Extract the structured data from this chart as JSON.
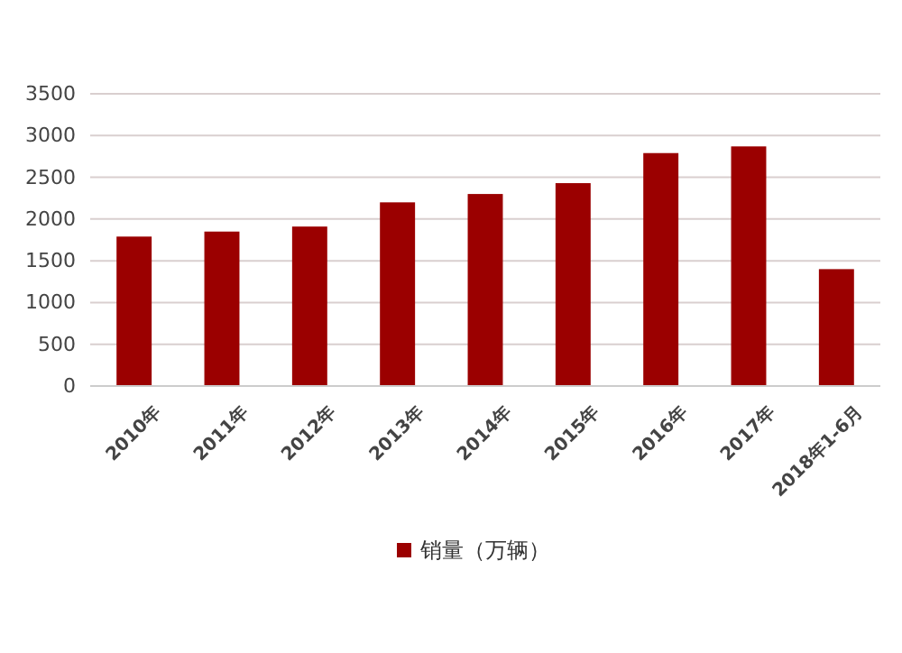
{
  "chart_data": {
    "type": "bar",
    "categories": [
      "2010年",
      "2011年",
      "2012年",
      "2013年",
      "2014年",
      "2015年",
      "2016年",
      "2017年",
      "2018年1-6月"
    ],
    "series": [
      {
        "name": "销量（万辆）",
        "color": "#9b0000",
        "values": [
          1790,
          1850,
          1910,
          2200,
          2300,
          2430,
          2790,
          2870,
          1400
        ]
      }
    ],
    "ylim": [
      0,
      3500
    ],
    "yticks": [
      0,
      500,
      1000,
      1500,
      2000,
      2500,
      3000,
      3500
    ],
    "grid": "y",
    "legend": "bottom"
  }
}
